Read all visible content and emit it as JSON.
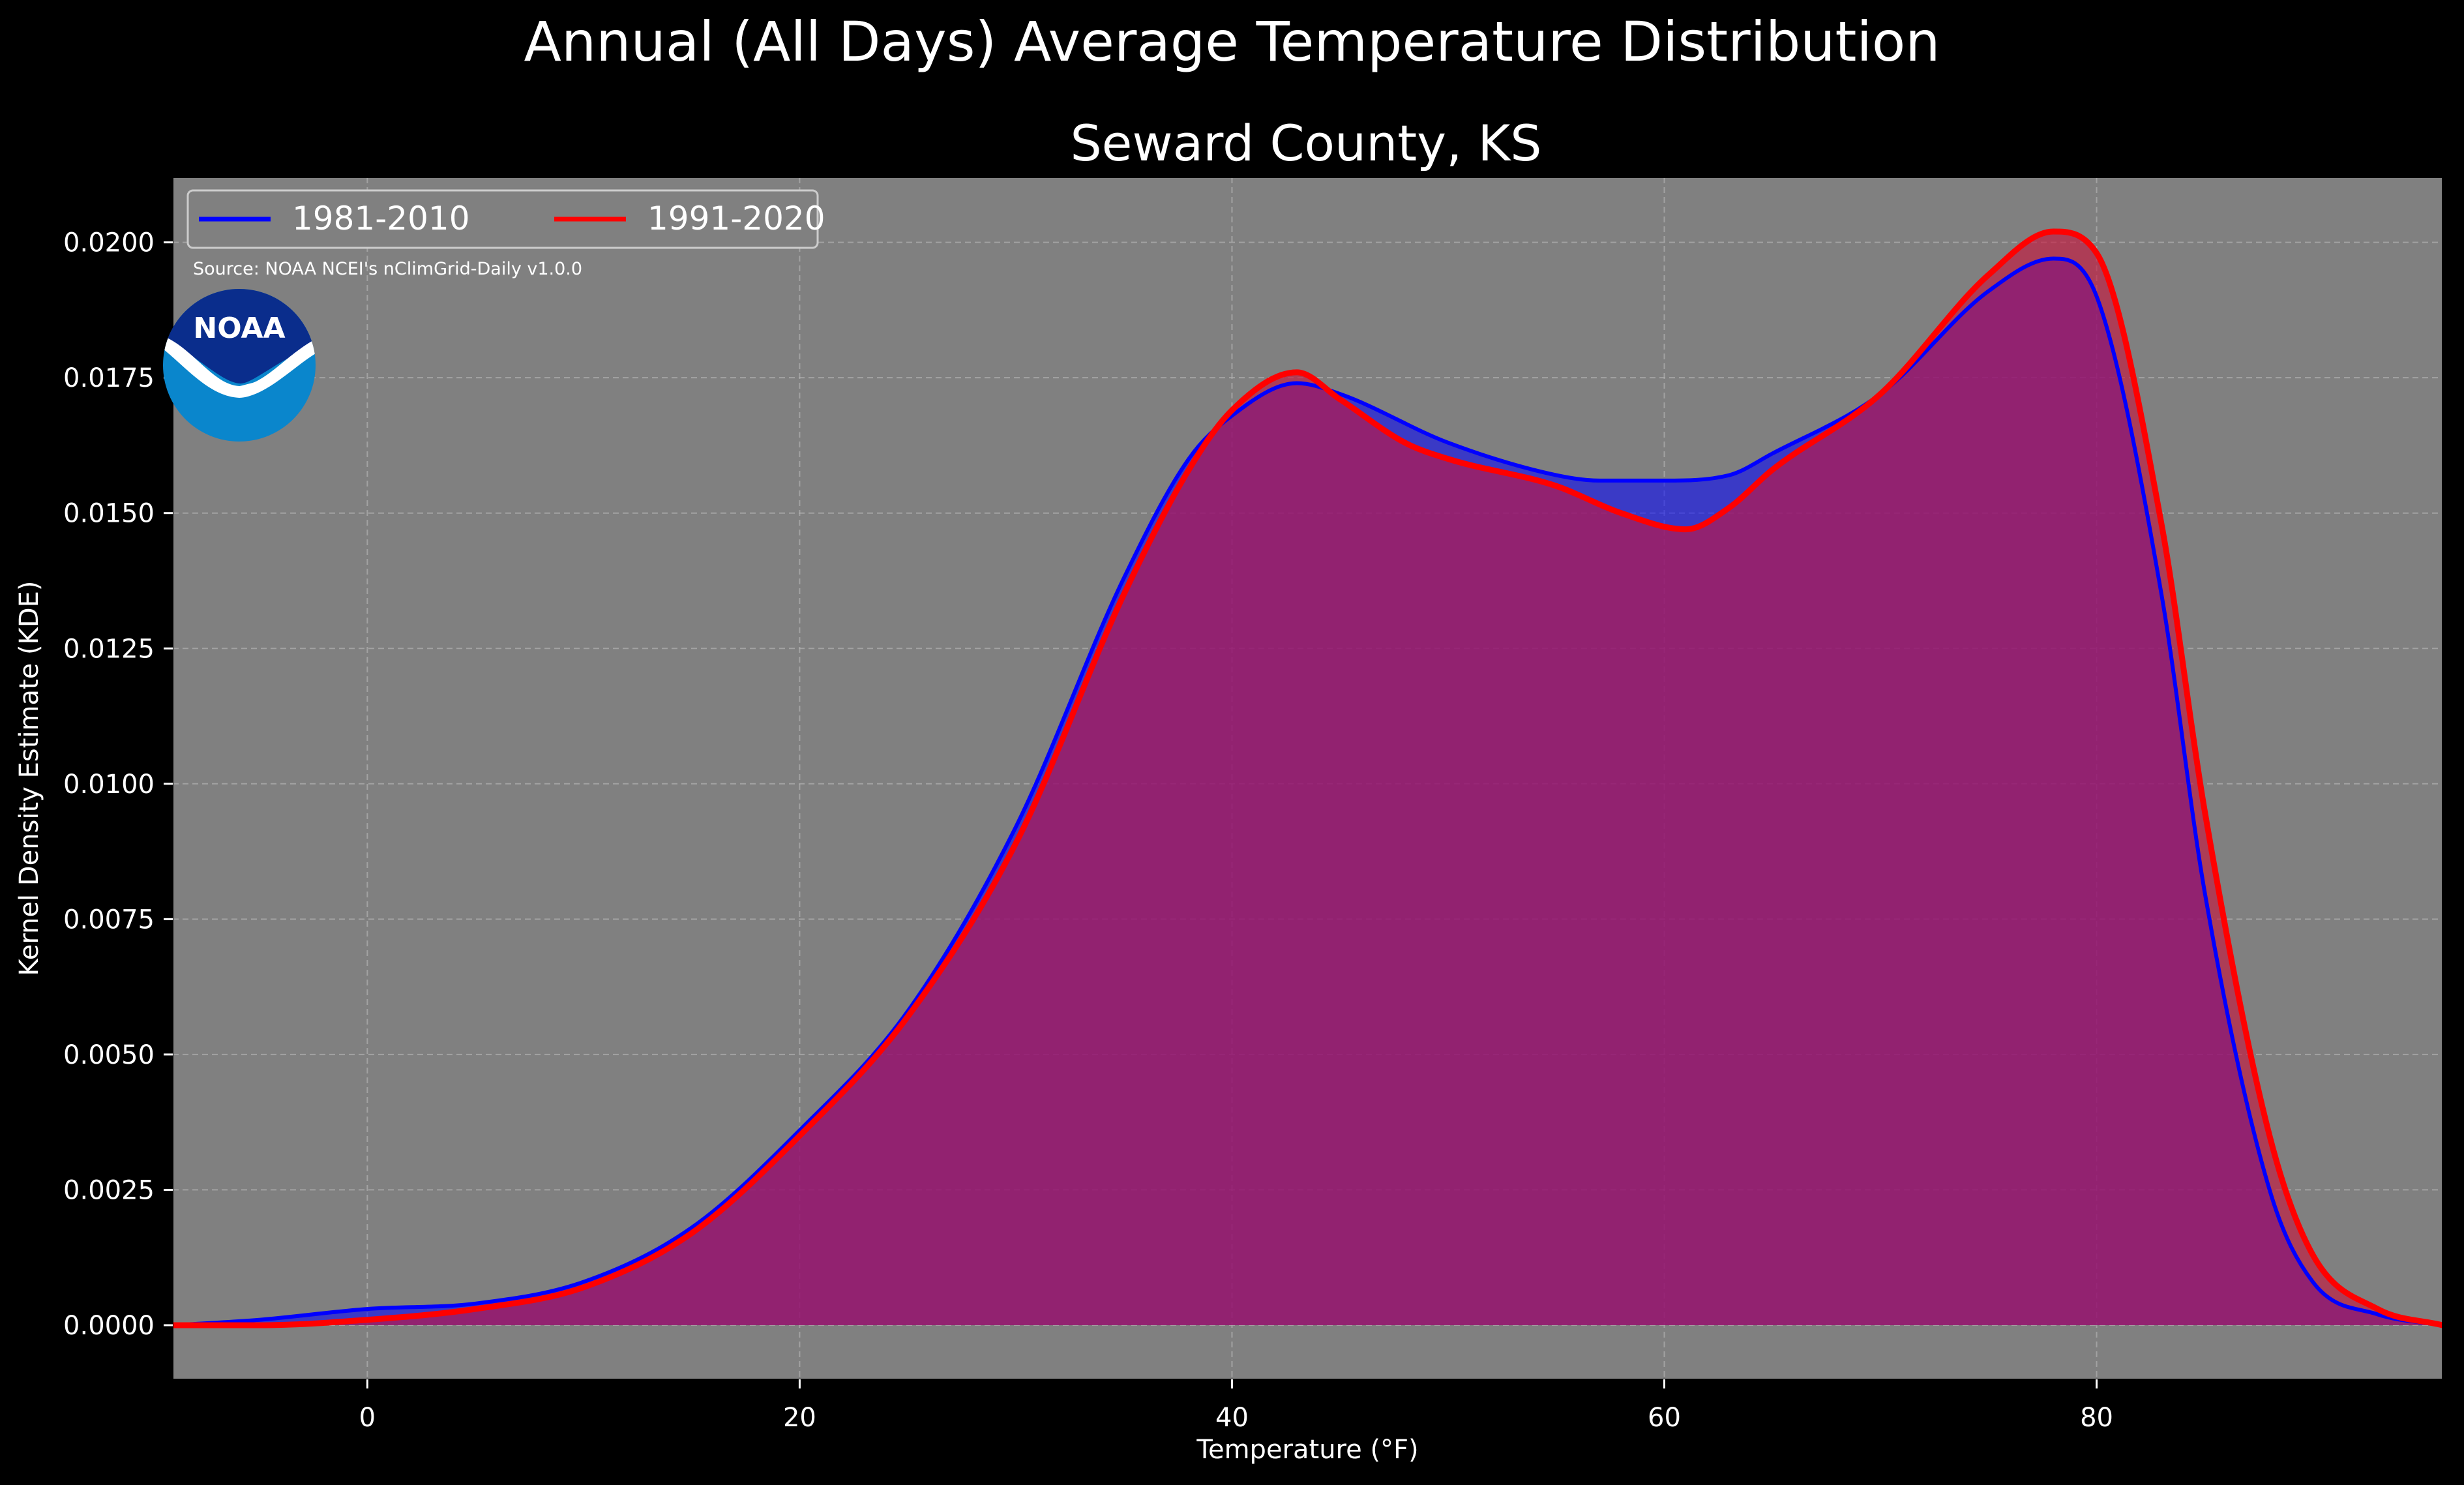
{
  "page": {
    "title": "Annual (All Days) Average Temperature Distribution",
    "subtitle": "Seward County, KS",
    "source_note": "Source: NOAA NCEI's nClimGrid-Daily v1.0.0",
    "logo_text": "NOAA"
  },
  "colors": {
    "background": "#000000",
    "plot_background": "#808080",
    "series_1981_2010": "#0000ff",
    "series_1991_2020": "#ff0000",
    "overlap_fill": "#9c1d5a",
    "text": "#ffffff",
    "logo_dark_blue": "#0a2d8c",
    "logo_light_blue": "#0a86cc"
  },
  "chart_data": {
    "type": "area",
    "title": "Seward County, KS",
    "xlabel": "Temperature (°F)",
    "ylabel": "Kernel Density Estimate (KDE)",
    "xlim": [
      -9,
      96
    ],
    "ylim": [
      -0.001,
      0.0212
    ],
    "x_ticks": [
      0,
      20,
      40,
      60,
      80
    ],
    "x_tick_labels": [
      "0",
      "20",
      "40",
      "60",
      "80"
    ],
    "y_ticks": [
      0,
      0.0025,
      0.005,
      0.0075,
      0.01,
      0.0125,
      0.015,
      0.0175,
      0.02
    ],
    "y_tick_labels": [
      "0.0000",
      "0.0025",
      "0.0050",
      "0.0075",
      "0.0100",
      "0.0125",
      "0.0150",
      "0.0175",
      "0.0200"
    ],
    "grid": true,
    "legend_position": "top-left",
    "series": [
      {
        "name": "1981-2010",
        "color": "#0000ff",
        "x": [
          -9,
          -5,
          0,
          5,
          10,
          15,
          20,
          25,
          30,
          35,
          38,
          40,
          43,
          45,
          50,
          55,
          57,
          60,
          63,
          65,
          70,
          75,
          78,
          80,
          83,
          85,
          88,
          90,
          93,
          96
        ],
        "y": [
          0.0,
          0.0001,
          0.0003,
          0.0004,
          0.0008,
          0.0018,
          0.0036,
          0.0058,
          0.0092,
          0.0138,
          0.016,
          0.0168,
          0.0174,
          0.0172,
          0.0163,
          0.0157,
          0.0156,
          0.0156,
          0.0157,
          0.0161,
          0.0172,
          0.0191,
          0.0197,
          0.019,
          0.0135,
          0.008,
          0.0025,
          0.0008,
          0.0002,
          0.0
        ]
      },
      {
        "name": "1991-2020",
        "color": "#ff0000",
        "x": [
          -9,
          -5,
          0,
          5,
          10,
          15,
          20,
          25,
          30,
          35,
          38,
          40,
          43,
          45,
          48,
          50,
          55,
          58,
          61,
          63,
          65,
          70,
          75,
          78,
          80,
          83,
          85,
          88,
          90,
          93,
          96
        ],
        "y": [
          0.0,
          0.0,
          0.0001,
          0.0003,
          0.0007,
          0.0017,
          0.0035,
          0.0057,
          0.0089,
          0.0135,
          0.0158,
          0.0169,
          0.0176,
          0.0171,
          0.0163,
          0.016,
          0.0155,
          0.015,
          0.0147,
          0.0151,
          0.0158,
          0.0172,
          0.0194,
          0.0202,
          0.0198,
          0.0148,
          0.0095,
          0.0035,
          0.0013,
          0.0003,
          0.0
        ]
      }
    ]
  }
}
